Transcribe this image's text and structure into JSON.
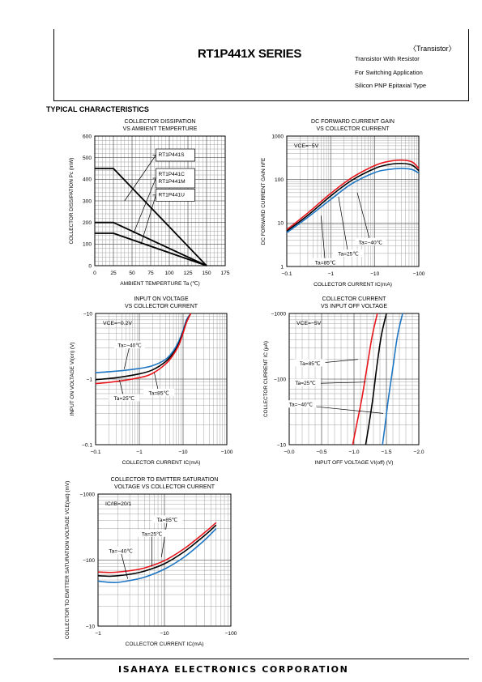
{
  "header": {
    "title": "RT1P441X SERIES",
    "category": "〈Transistor〉",
    "lines": [
      "Transistor With Resistor",
      "For Switching Application",
      "Silicon PNP Epitaxial Type"
    ]
  },
  "section_title": "TYPICAL CHARACTERISTICS",
  "footer": "ISAHAYA ELECTRONICS CORPORATION",
  "chart_data": [
    {
      "id": "c1",
      "type": "line",
      "title": [
        "COLLECTOR DISSIPATION",
        "VS AMBIENT TEMPERTURE"
      ],
      "xlabel": "AMBIENT TEMPERTURE Ta (℃)",
      "ylabel": "COLLECTOR DISSIPATION Pc (mW)",
      "xscale": "linear",
      "xlim": [
        0,
        175
      ],
      "xticks": [
        0,
        25,
        50,
        75,
        100,
        125,
        150,
        175
      ],
      "xticklabels": [
        "0",
        "25",
        "50",
        "75",
        "100",
        "125",
        "150",
        "175"
      ],
      "yscale": "linear",
      "ylim": [
        0,
        600
      ],
      "yticks": [
        0,
        100,
        200,
        300,
        400,
        500,
        600
      ],
      "yticklabels": [
        "0",
        "100",
        "200",
        "300",
        "400",
        "500",
        "600"
      ],
      "grid": true,
      "series": [
        {
          "name": "RT1P441S",
          "color": "#000000",
          "x": [
            0,
            25,
            150
          ],
          "y": [
            450,
            450,
            0
          ]
        },
        {
          "name": "RT1P441C RT1P441M",
          "color": "#000000",
          "x": [
            0,
            25,
            150
          ],
          "y": [
            200,
            200,
            0
          ]
        },
        {
          "name": "RT1P441U",
          "color": "#000000",
          "x": [
            0,
            25,
            150
          ],
          "y": [
            150,
            150,
            0
          ]
        }
      ],
      "boxes": [
        {
          "lines": [
            "RT1P441S"
          ],
          "at": [
            82,
            525
          ],
          "to": [
            40,
            300
          ]
        },
        {
          "lines": [
            "RT1P441C",
            "RT1P441M"
          ],
          "at": [
            82,
            435
          ],
          "to": [
            52,
            150
          ]
        },
        {
          "lines": [
            "RT1P441U"
          ],
          "at": [
            82,
            340
          ],
          "to": [
            62,
            100
          ]
        }
      ]
    },
    {
      "id": "c2",
      "type": "line",
      "title": [
        "DC FORWARD CURRENT GAIN",
        "VS COLLECTOR CURRENT"
      ],
      "xlabel": "COLLECTOR CURRENT IC(mA)",
      "ylabel": "DC FORWARD CURRENT GAIN hFE",
      "xscale": "log",
      "xlim": [
        0.1,
        100
      ],
      "xticks": [
        0.1,
        1,
        10,
        100
      ],
      "xticklabels": [
        "−0.1",
        "−1",
        "−10",
        "−100"
      ],
      "yscale": "log",
      "ylim": [
        1,
        1000
      ],
      "yticks": [
        1,
        10,
        100,
        1000
      ],
      "yticklabels": [
        "1",
        "10",
        "100",
        "1000"
      ],
      "grid": true,
      "condition": "VCE=−5V",
      "series": [
        {
          "name": "Ta=85℃",
          "color": "#e8161c",
          "x": [
            0.1,
            0.3,
            1,
            3,
            10,
            20,
            40,
            70,
            100
          ],
          "y": [
            7,
            17,
            48,
            110,
            210,
            260,
            280,
            255,
            180
          ]
        },
        {
          "name": "Ta=25℃",
          "color": "#000000",
          "x": [
            0.1,
            0.3,
            1,
            3,
            10,
            20,
            40,
            70,
            100
          ],
          "y": [
            6.5,
            15,
            42,
            96,
            180,
            220,
            235,
            215,
            160
          ]
        },
        {
          "name": "Ta=−40℃",
          "color": "#1f77c4",
          "x": [
            0.1,
            0.3,
            1,
            3,
            10,
            20,
            40,
            70,
            100
          ],
          "y": [
            6,
            13.5,
            35,
            80,
            145,
            170,
            180,
            170,
            140
          ]
        }
      ],
      "annotations": [
        {
          "text": "Ta=−40℃",
          "at": [
            8,
            3.5
          ],
          "to": [
            4,
            50
          ]
        },
        {
          "text": "Ta=25℃",
          "at": [
            2.5,
            1.9
          ],
          "to": [
            1.5,
            40
          ]
        },
        {
          "text": "Ta=85℃",
          "at": [
            0.75,
            1.2
          ],
          "to": [
            0.6,
            15
          ]
        }
      ]
    },
    {
      "id": "c3",
      "type": "line",
      "title": [
        "INPUT ON VOLTAGE",
        "VS COLLECTOR CURRENT"
      ],
      "xlabel": "COLLECTOR CURRENT IC(mA)",
      "ylabel": "INPUT ON VOLTAGE VI(on) (V)",
      "xscale": "log",
      "xlim": [
        0.1,
        100
      ],
      "xticks": [
        0.1,
        1,
        10,
        100
      ],
      "xticklabels": [
        "−0.1",
        "−1",
        "−10",
        "−100"
      ],
      "yscale": "log",
      "ylim": [
        0.1,
        10
      ],
      "yticks": [
        0.1,
        1,
        10
      ],
      "yticklabels": [
        "−0.1",
        "−1",
        "−10"
      ],
      "grid": true,
      "condition": "VCE=−0.2V",
      "series": [
        {
          "name": "Ta=−40℃",
          "color": "#1f77c4",
          "x": [
            0.1,
            0.3,
            1,
            2,
            4,
            6,
            8,
            10,
            12,
            15
          ],
          "y": [
            1.25,
            1.32,
            1.45,
            1.6,
            2.0,
            2.7,
            3.8,
            5.5,
            8,
            10
          ]
        },
        {
          "name": "Ta=25℃",
          "color": "#000000",
          "x": [
            0.1,
            0.3,
            1,
            2,
            4,
            6,
            8,
            10,
            12,
            15
          ],
          "y": [
            0.98,
            1.05,
            1.2,
            1.38,
            1.85,
            2.5,
            3.5,
            5.2,
            7.5,
            10
          ]
        },
        {
          "name": "Ta=85℃",
          "color": "#e8161c",
          "x": [
            0.1,
            0.3,
            1,
            2,
            4,
            6,
            8,
            10,
            12,
            15
          ],
          "y": [
            0.85,
            0.92,
            1.05,
            1.22,
            1.7,
            2.35,
            3.3,
            5,
            7.3,
            10
          ]
        }
      ],
      "annotations": [
        {
          "text": "Ta=−40℃",
          "at": [
            0.6,
            3.2
          ],
          "to": [
            0.45,
            1.42
          ]
        },
        {
          "text": "Ta=25℃",
          "at": [
            0.45,
            0.5
          ],
          "to": [
            0.35,
            0.97
          ]
        },
        {
          "text": "Ta=85℃",
          "at": [
            2.8,
            0.6
          ],
          "to": [
            2.2,
            1.25
          ]
        }
      ]
    },
    {
      "id": "c4",
      "type": "line",
      "title": [
        "COLLECTOR CURRENT",
        "VS INPUT OFF VOLTAGE"
      ],
      "xlabel": "INPUT OFF VOLTAGE VI(off) (V)",
      "ylabel": "COLLECTOR CURRENT IC (μA)",
      "xscale": "linear",
      "xlim": [
        0,
        2
      ],
      "xticks": [
        0,
        0.5,
        1,
        1.5,
        2
      ],
      "xticklabels": [
        "−0.0",
        "−0.5",
        "−1.0",
        "−1.5",
        "−2.0"
      ],
      "yscale": "log",
      "ylim": [
        10,
        1000
      ],
      "yticks": [
        10,
        100,
        1000
      ],
      "yticklabels": [
        "−10",
        "−100",
        "−1000"
      ],
      "grid": true,
      "condition": "VCE=−5V",
      "series": [
        {
          "name": "Ta=85℃",
          "color": "#e8161c",
          "x": [
            0.98,
            1.04,
            1.12,
            1.2,
            1.28,
            1.36
          ],
          "y": [
            10,
            20,
            50,
            150,
            450,
            1000
          ]
        },
        {
          "name": "Ta=25℃",
          "color": "#000000",
          "x": [
            1.18,
            1.23,
            1.29,
            1.35,
            1.42,
            1.5
          ],
          "y": [
            10,
            20,
            50,
            150,
            450,
            1000
          ]
        },
        {
          "name": "Ta=−40℃",
          "color": "#1f77c4",
          "x": [
            1.44,
            1.48,
            1.53,
            1.6,
            1.67,
            1.75
          ],
          "y": [
            10,
            20,
            50,
            150,
            450,
            1000
          ]
        }
      ],
      "annotations": [
        {
          "text": "Ta=85℃",
          "at": [
            0.32,
            170
          ],
          "to": [
            1.06,
            200
          ]
        },
        {
          "text": "Ta=25℃",
          "at": [
            0.25,
            85
          ],
          "to": [
            1.18,
            90
          ]
        },
        {
          "text": "Ta=−40℃",
          "at": [
            0.18,
            40
          ],
          "to": [
            1.45,
            30
          ]
        }
      ]
    },
    {
      "id": "c5",
      "type": "line",
      "title": [
        "COLLECTOR TO EMITTER SATURATION",
        "VOLTAGE VS COLLECTOR CURRENT"
      ],
      "xlabel": "COLLECTOR CURRENT IC(mA)",
      "ylabel": "COLLECTOR TO EMITTER SATURATION VOLTAGE VCE(sat) (mV)",
      "xscale": "log",
      "xlim": [
        1,
        100
      ],
      "xticks": [
        1,
        10,
        100
      ],
      "xticklabels": [
        "−1",
        "−10",
        "−100"
      ],
      "yscale": "log",
      "ylim": [
        10,
        1000
      ],
      "yticks": [
        10,
        100,
        1000
      ],
      "yticklabels": [
        "−10",
        "−100",
        "−1000"
      ],
      "grid": true,
      "condition": "IC/IB=20/1",
      "series": [
        {
          "name": "Ta=85℃",
          "color": "#e8161c",
          "x": [
            1,
            1.5,
            2,
            3,
            5,
            10,
            20,
            40,
            60
          ],
          "y": [
            66,
            65,
            66,
            69,
            76,
            98,
            150,
            260,
            370
          ]
        },
        {
          "name": "Ta=25℃",
          "color": "#000000",
          "x": [
            1,
            1.5,
            2,
            3,
            5,
            10,
            20,
            40,
            60
          ],
          "y": [
            58,
            57,
            58,
            61,
            68,
            88,
            135,
            235,
            340
          ]
        },
        {
          "name": "Ta=−40℃",
          "color": "#1f77c4",
          "x": [
            1,
            1.5,
            2,
            3,
            5,
            10,
            20,
            40,
            60
          ],
          "y": [
            48,
            46,
            46,
            49,
            55,
            73,
            112,
            200,
            300
          ]
        }
      ],
      "annotations": [
        {
          "text": "Ta=85℃",
          "at": [
            11,
            400
          ],
          "to": [
            9,
            110
          ]
        },
        {
          "text": "Ta=25℃",
          "at": [
            6.5,
            245
          ],
          "to": [
            6.5,
            80
          ]
        },
        {
          "text": "Ta=−40℃",
          "at": [
            2.2,
            135
          ],
          "to": [
            2.8,
            52
          ]
        }
      ]
    }
  ]
}
